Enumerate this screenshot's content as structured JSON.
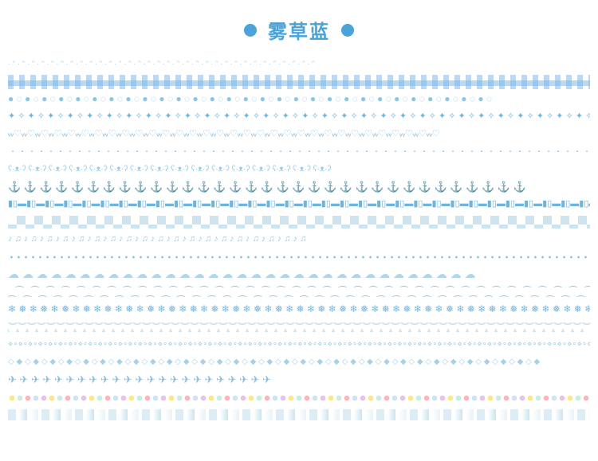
{
  "header": {
    "title": "雾草蓝",
    "dot_color": "#4aa3d9",
    "title_color": "#4aa3d9"
  },
  "palette": {
    "primary": "#6fb4dc",
    "light": "#a8d0e8",
    "pale": "#cde5f3",
    "deep": "#4a8fb8"
  },
  "tapes": [
    {
      "type": "glyph",
      "pattern": "∙ ᵔ ∙ ᵔ ∙ ᵔ ∙ ᵔ ∙ ᵔ ∙ ᵔ ∙ ᵔ ∙ ᵔ ∙ ᵔ ∙ ᵔ ∙ ᵔ ∙ ᵔ ∙ ᵔ ∙ ᵔ ∙ ᵔ ∙ ᵔ ∙ ᵔ ∙ ᵔ ∙ ᵔ ∙ ᵔ ∙ ᵔ ∙ ᵔ ∙ ᵔ ∙ ᵔ ∙ ᵔ ∙ ᵔ ∙ ᵔ ∙ ᵔ ∙ ᵔ ∙ ᵔ ∙ ᵔ ∙ ᵔ ",
      "color": "#a8d0e8",
      "size": 10
    },
    {
      "type": "css",
      "class": "gingham"
    },
    {
      "type": "glyph",
      "pattern": "● ◌ ● ◌ ● ◌ ● ◌ ● ◌ ● ◌ ● ◌ ● ◌ ● ◌ ● ◌ ● ◌ ● ◌ ● ◌ ● ◌ ● ◌ ● ◌ ● ◌ ● ◌ ● ◌ ● ◌ ● ◌ ● ◌ ● ◌ ● ◌ ● ◌ ● ◌ ● ◌ ● ◌ ● ◌ ",
      "color": "#8fc4e2",
      "size": 12
    },
    {
      "type": "glyph",
      "pattern": "✦ ✧ ✦ ✧ ✦ ✧ ✦ ✧ ✦ ✧ ✦ ✧ ✦ ✧ ✦ ✧ ✦ ✧ ✦ ✧ ✦ ✧ ✦ ✧ ✦ ✧ ✦ ✧ ✦ ✧ ✦ ✧ ✦ ✧ ✦ ✧ ✦ ✧ ✦ ✧ ✦ ✧ ✦ ✧ ✦ ✧ ✦ ✧ ✦ ✧ ✦ ✧ ✦ ✧ ✦ ✧ ✦ ✧ ✦ ✧ ",
      "color": "#6fb4dc",
      "size": 11
    },
    {
      "type": "glyph",
      "pattern": "ᵥᵥ♡ᵥᵥ♡ᵥᵥ♡ᵥᵥ♡ᵥᵥ♡ᵥᵥ♡ᵥᵥ♡ᵥᵥ♡ᵥᵥ♡ᵥᵥ♡ᵥᵥ♡ᵥᵥ♡ᵥᵥ♡ᵥᵥ♡ᵥᵥ♡ᵥᵥ♡ᵥᵥ♡ᵥᵥ♡ᵥᵥ♡ᵥᵥ♡ᵥᵥ♡ᵥᵥ♡ᵥᵥ♡ᵥᵥ♡ᵥᵥ♡ᵥᵥ♡ᵥᵥ♡ᵥᵥ♡ᵥᵥ♡ᵥᵥ♡ᵥᵥ♡ᵥᵥ♡",
      "color": "#7fb8db",
      "size": 11
    },
    {
      "type": "css",
      "class": "dotline-sm"
    },
    {
      "type": "glyph",
      "pattern": "ʕ·ᴥ·ʔ  ʕ·ᴥ·ʔ  ʕ·ᴥ·ʔ  ʕ·ᴥ·ʔ  ʕ·ᴥ·ʔ  ʕ·ᴥ·ʔ  ʕ·ᴥ·ʔ  ʕ·ᴥ·ʔ  ʕ·ᴥ·ʔ  ʕ·ᴥ·ʔ  ʕ·ᴥ·ʔ  ʕ·ᴥ·ʔ  ʕ·ᴥ·ʔ  ʕ·ᴥ·ʔ  ʕ·ᴥ·ʔ  ʕ·ᴥ·ʔ  ",
      "color": "#9fc9e0",
      "size": 10
    },
    {
      "type": "glyph",
      "pattern": "⚓  ⚓  ⚓  ⚓  ⚓  ⚓  ⚓  ⚓  ⚓  ⚓  ⚓  ⚓  ⚓  ⚓  ⚓  ⚓  ⚓  ⚓  ⚓  ⚓  ⚓  ⚓  ⚓  ⚓  ⚓  ⚓  ⚓  ⚓  ⚓  ⚓  ⚓  ⚓  ⚓  ",
      "color": "#5fa5cf",
      "size": 13
    },
    {
      "type": "glyph",
      "pattern": "▮▯▬▮▯▬▮▯▬▮▯▬▮▯▬▮▯▬▮▯▬▮▯▬▮▯▬▮▯▬▮▯▬▮▯▬▮▯▬▮▯▬▮▯▬▮▯▬▮▯▬▮▯▬▮▯▬▮▯▬▮▯▬▮▯▬▮▯▬▮▯▬▮▯▬▮▯▬▮▯▬▮▯▬▮▯▬▮▯▬▮▯▬▮▯▬▮▯▬▮▯▬",
      "color": "#6fb4dc",
      "size": 11
    },
    {
      "type": "css",
      "class": "checker"
    },
    {
      "type": "glyph",
      "pattern": "♪  ♫  ♪  ♫  ♪  ♫  ♪  ♫  ♪  ♫  ♪  ♫  ♪  ♫  ♪  ♫  ♪  ♫  ♪  ♫  ♪  ♫  ♪  ♫  ♪  ♫  ♪  ♫  ♪  ♫  ♪  ♫  ♪  ♫  ♪  ♫  ♪  ♫  ",
      "color": "#9fc9e0",
      "size": 11
    },
    {
      "type": "css",
      "class": "dotline"
    },
    {
      "type": "glyph",
      "pattern": "☁  ☁  ☁  ☁  ☁  ☁  ☁  ☁  ☁  ☁  ☁  ☁  ☁  ☁  ☁  ☁  ☁  ☁  ☁  ☁  ☁  ☁  ☁  ☁  ☁  ☁  ☁  ☁  ☁  ☁  ☁  ☁  ☁  ",
      "color": "#b0d4e8",
      "size": 14
    },
    {
      "type": "glyph",
      "pattern": "⁔⁀⁔⁀⁔⁀⁔⁀⁔⁀⁔⁀⁔⁀⁔⁀⁔⁀⁔⁀⁔⁀⁔⁀⁔⁀⁔⁀⁔⁀⁔⁀⁔⁀⁔⁀⁔⁀⁔⁀⁔⁀⁔⁀⁔⁀⁔⁀⁔⁀⁔⁀⁔⁀⁔⁀⁔⁀⁔⁀⁔⁀⁔⁀⁔⁀⁔⁀⁔⁀⁔⁀⁔⁀⁔⁀⁔⁀⁔⁀⁔⁀⁔⁀⁔⁀⁔⁀⁔⁀⁔⁀⁔⁀⁔⁀⁔⁀⁔⁀⁔⁀⁔⁀",
      "color": "#8fc4e2",
      "size": 12
    },
    {
      "type": "glyph",
      "pattern": "❄ ❅ ❄ ❅ ❄ ❅ ❄ ❅ ❄ ❅ ❄ ❅ ❄ ❅ ❄ ❅ ❄ ❅ ❄ ❅ ❄ ❅ ❄ ❅ ❄ ❅ ❄ ❅ ❄ ❅ ❄ ❅ ❄ ❅ ❄ ❅ ❄ ❅ ❄ ❅ ❄ ❅ ❄ ❅ ❄ ❅ ❄ ❅ ❄ ❅ ❄ ❅ ❄ ❅ ❄ ❅ ",
      "color": "#7fb8db",
      "size": 12
    },
    {
      "type": "css",
      "class": "scalloped"
    },
    {
      "type": "glyph",
      "pattern": "⋄∘⋄∘⋄∘⋄∘⋄∘⋄∘⋄∘⋄∘⋄∘⋄∘⋄∘⋄∘⋄∘⋄∘⋄∘⋄∘⋄∘⋄∘⋄∘⋄∘⋄∘⋄∘⋄∘⋄∘⋄∘⋄∘⋄∘⋄∘⋄∘⋄∘⋄∘⋄∘⋄∘⋄∘⋄∘⋄∘⋄∘⋄∘⋄∘⋄∘⋄∘⋄∘⋄∘⋄∘⋄∘⋄∘⋄∘⋄∘⋄∘⋄∘⋄∘⋄∘⋄∘⋄∘⋄∘⋄∘⋄∘⋄∘⋄∘⋄∘",
      "color": "#9fc9e0",
      "size": 10
    },
    {
      "type": "glyph",
      "pattern": "◇ ◆ ◇ ◆ ◇ ◆ ◇ ◆ ◇ ◆ ◇ ◆ ◇ ◆ ◇ ◆ ◇ ◆ ◇ ◆ ◇ ◆ ◇ ◆ ◇ ◆ ◇ ◆ ◇ ◆ ◇ ◆ ◇ ◆ ◇ ◆ ◇ ◆ ◇ ◆ ◇ ◆ ◇ ◆ ◇ ◆ ◇ ◆ ◇ ◆ ◇ ◆ ◇ ◆ ◇ ◆ ◇ ◆ ◇ ◆ ◇ ◆ ◇ ◆ ",
      "color": "#a8d0e8",
      "size": 10
    },
    {
      "type": "glyph",
      "pattern": "✈    ✈    ✈    ✈    ✈    ✈    ✈    ✈    ✈    ✈    ✈    ✈    ✈    ✈    ✈    ✈    ✈    ✈    ✈    ✈    ✈    ✈    ✈    ",
      "color": "#8fbcd8",
      "size": 13
    },
    {
      "type": "css",
      "class": "rainbow-dots"
    },
    {
      "type": "css",
      "class": "squares-soft"
    }
  ]
}
